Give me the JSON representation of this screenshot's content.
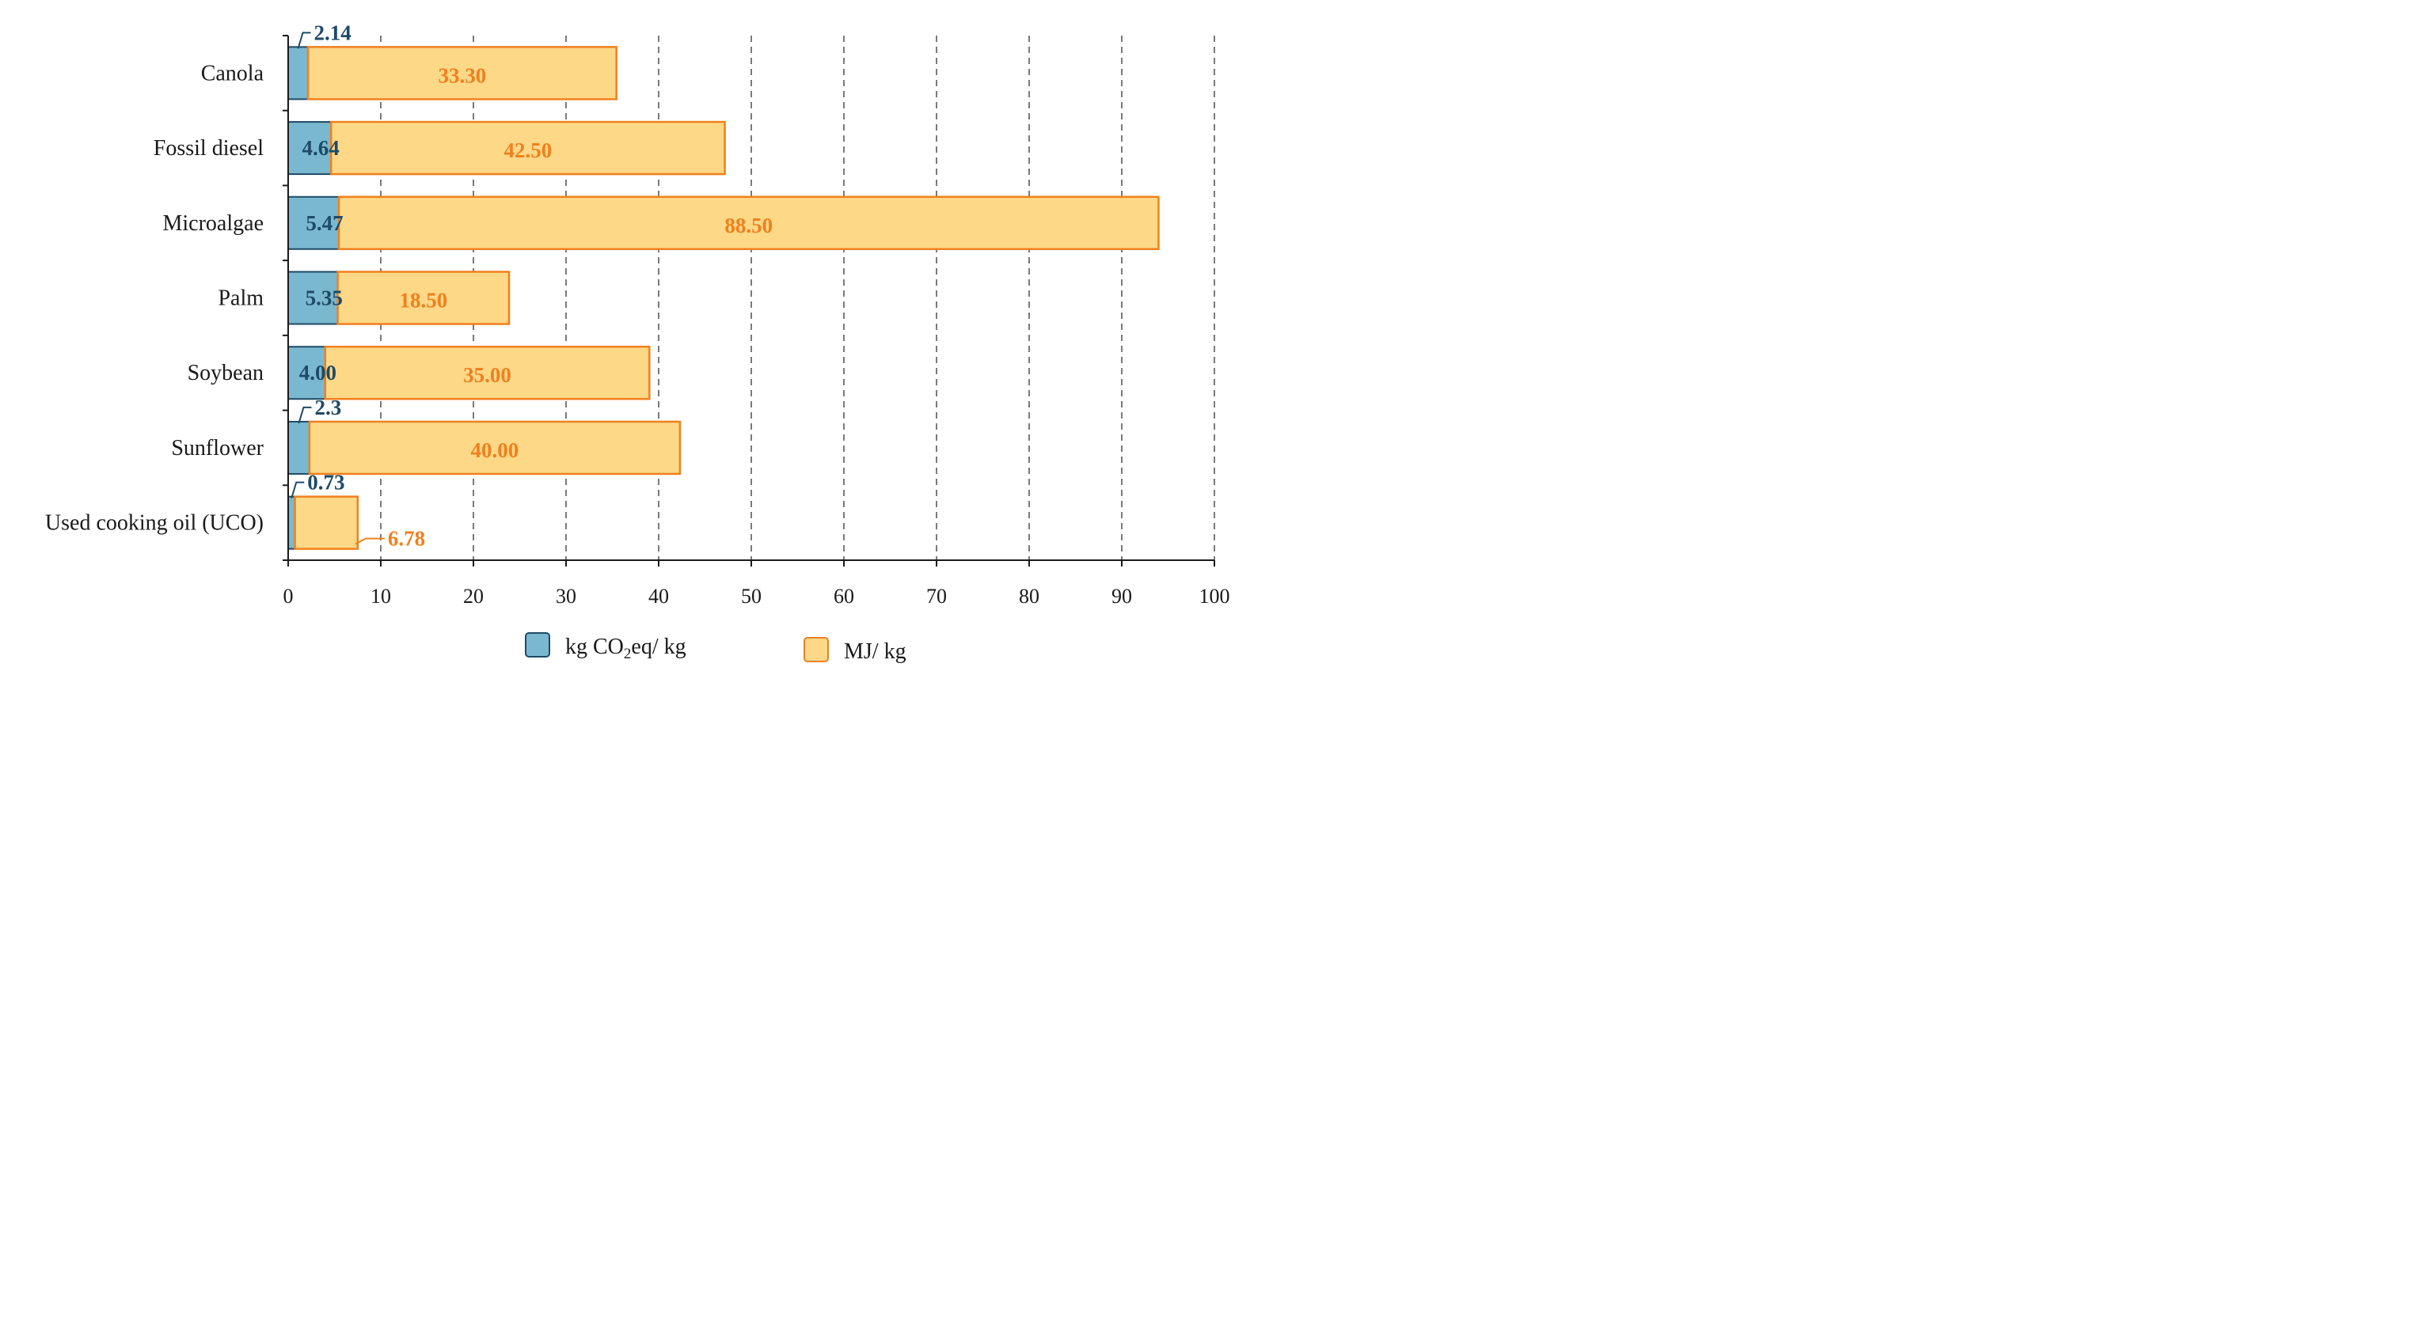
{
  "chart_data": {
    "type": "bar",
    "orientation": "horizontal",
    "stacked": true,
    "categories": [
      "Canola",
      "Fossil diesel",
      "Microalgae",
      "Palm",
      "Soybean",
      "Sunflower",
      "Used cooking oil (UCO)"
    ],
    "series": [
      {
        "name": "kg CO2eq/ kg",
        "values": [
          2.14,
          4.64,
          5.47,
          5.35,
          4.0,
          2.3,
          0.73
        ],
        "labels": [
          "2.14",
          "4.64",
          "5.47",
          "5.35",
          "4.00",
          "2.3",
          "0.73"
        ],
        "fill": "#7ab8cf",
        "stroke": "#1e4a66"
      },
      {
        "name": "MJ/ kg",
        "values": [
          33.3,
          42.5,
          88.5,
          18.5,
          35.0,
          40.0,
          6.78
        ],
        "labels": [
          "33.30",
          "42.50",
          "88.50",
          "18.50",
          "35.00",
          "40.00",
          "6.78"
        ],
        "fill": "#fdd887",
        "stroke": "#f0801e"
      }
    ],
    "xlim": [
      0,
      100
    ],
    "xticks": [
      0,
      10,
      20,
      30,
      40,
      50,
      60,
      70,
      80,
      90,
      100
    ],
    "grid": "vertical dashed",
    "legend_position": "bottom",
    "legend": {
      "co2_main": "kg CO",
      "co2_sub": "2",
      "co2_rest": "eq/ kg",
      "mj": "MJ/ kg"
    }
  }
}
